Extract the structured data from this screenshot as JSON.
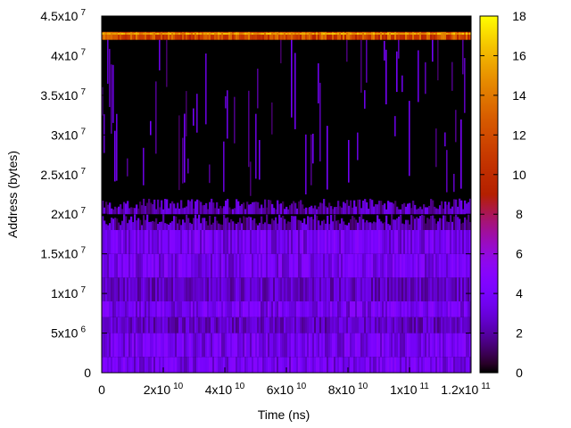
{
  "chart_data": {
    "type": "heatmap",
    "title": "",
    "xlabel": "Time (ns)",
    "ylabel": "Address (bytes)",
    "xlim": [
      0,
      120000000000
    ],
    "ylim": [
      0,
      45000000
    ],
    "x_ticks": [
      {
        "value": 0,
        "mant": "0",
        "exp": ""
      },
      {
        "value": 20000000000,
        "mant": "2x10",
        "exp": "10"
      },
      {
        "value": 40000000000,
        "mant": "4x10",
        "exp": "10"
      },
      {
        "value": 60000000000,
        "mant": "6x10",
        "exp": "10"
      },
      {
        "value": 80000000000,
        "mant": "8x10",
        "exp": "10"
      },
      {
        "value": 100000000000,
        "mant": "1x10",
        "exp": "11"
      },
      {
        "value": 120000000000,
        "mant": "1.2x10",
        "exp": "11"
      }
    ],
    "y_ticks": [
      {
        "value": 0,
        "mant": "0",
        "exp": ""
      },
      {
        "value": 5000000,
        "mant": "5x10",
        "exp": "6"
      },
      {
        "value": 10000000,
        "mant": "1x10",
        "exp": "7"
      },
      {
        "value": 15000000,
        "mant": "1.5x10",
        "exp": "7"
      },
      {
        "value": 20000000,
        "mant": "2x10",
        "exp": "7"
      },
      {
        "value": 25000000,
        "mant": "2.5x10",
        "exp": "7"
      },
      {
        "value": 30000000,
        "mant": "3x10",
        "exp": "7"
      },
      {
        "value": 35000000,
        "mant": "3.5x10",
        "exp": "7"
      },
      {
        "value": 40000000,
        "mant": "4x10",
        "exp": "7"
      },
      {
        "value": 45000000,
        "mant": "4.5x10",
        "exp": "7"
      }
    ],
    "colorbar": {
      "min": 0,
      "max": 18,
      "ticks": [
        "0",
        "2",
        "4",
        "6",
        "8",
        "10",
        "12",
        "14",
        "16",
        "18"
      ],
      "palette": "gnuplot-rgbformulae-7-5-15"
    },
    "density_bands": [
      {
        "y_from": 0,
        "y_to": 18000000,
        "typical_count": 4
      },
      {
        "y_from": 18000000,
        "y_to": 22000000,
        "typical_count": 3
      },
      {
        "y_from": 22000000,
        "y_to": 42000000,
        "typical_count": 0.5
      },
      {
        "y_from": 42000000,
        "y_to": 43000000,
        "typical_count": 11
      }
    ],
    "grid": false,
    "legend": "none"
  }
}
